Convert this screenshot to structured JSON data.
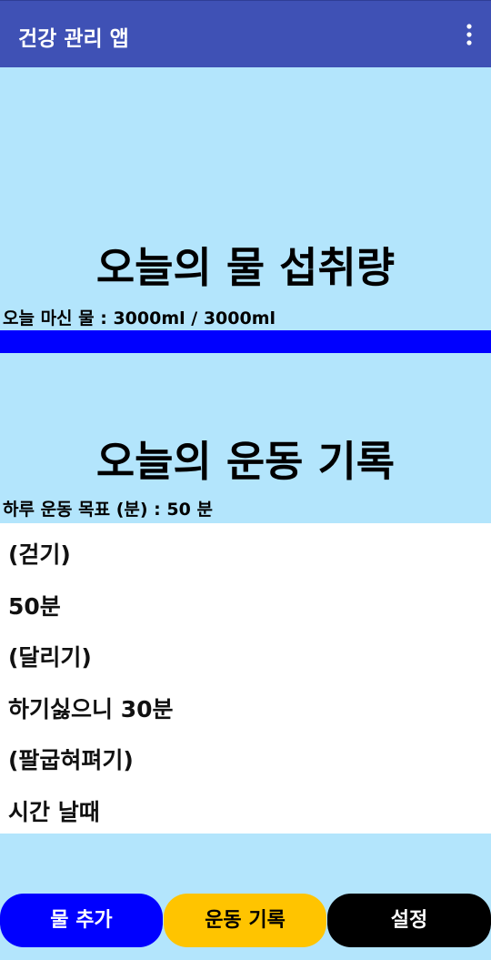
{
  "app_bar": {
    "title": "건강 관리 앱",
    "menu_icon": "more-vert-icon"
  },
  "water": {
    "title": "오늘의 물 섭취량",
    "label": "오늘 마신 물 : 3000ml / 3000ml",
    "progress_fraction": 1.0,
    "progress_color": "#0000ff"
  },
  "exercise": {
    "title": "오늘의 운동 기록",
    "goal_label": "하루 운동 목표 (분) : 50 분",
    "log": [
      "(걷기)",
      "50분",
      "(달리기)",
      "하기싫으니 30분",
      "(팔굽혀펴기)",
      "시간 날때"
    ]
  },
  "buttons": {
    "add_water": "물 추가",
    "exercise_log": "운동 기록",
    "settings": "설정"
  },
  "colors": {
    "app_bar": "#3f51b5",
    "background": "#b3e5fc",
    "add_water_button": "#0000ff",
    "exercise_button": "#ffc400",
    "settings_button": "#000000"
  }
}
